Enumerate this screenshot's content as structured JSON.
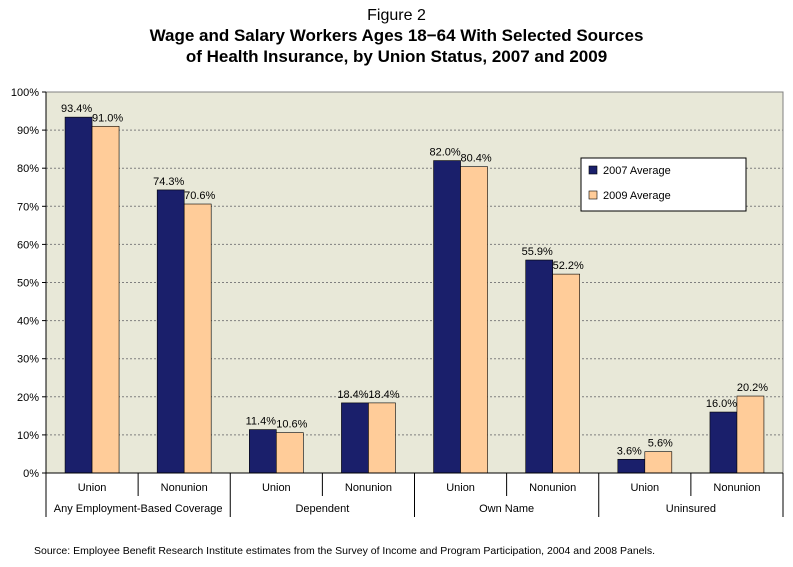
{
  "header": {
    "figure_label": "Figure 2",
    "title_line1": "Wage and Salary Workers Ages 18−64 With Selected Sources",
    "title_line2": "of Health Insurance, by Union Status, 2007 and 2009"
  },
  "source_note": "Source: Employee Benefit Research Institute estimates from the Survey of Income and Program Participation,  2004 and 2008 Panels.",
  "colors": {
    "series_2007": "#1a1f6b",
    "series_2009": "#ffcc99",
    "plot_background": "#e8e8d8",
    "grid": "#7f7f7f"
  },
  "chart_data": {
    "type": "bar",
    "title": "Wage and Salary Workers Ages 18−64 With Selected Sources of Health Insurance, by Union Status, 2007 and 2009",
    "categories": [
      "Union",
      "Nonunion",
      "Union",
      "Nonunion",
      "Union",
      "Nonunion",
      "Union",
      "Nonunion"
    ],
    "groups": [
      {
        "label": "Any Employment-Based Coverage",
        "categories": [
          "Union",
          "Nonunion"
        ]
      },
      {
        "label": "Dependent",
        "categories": [
          "Union",
          "Nonunion"
        ]
      },
      {
        "label": "Own Name",
        "categories": [
          "Union",
          "Nonunion"
        ]
      },
      {
        "label": "Uninsured",
        "categories": [
          "Union",
          "Nonunion"
        ]
      }
    ],
    "series": [
      {
        "name": "2007 Average",
        "color": "#1a1f6b",
        "values": [
          93.4,
          74.3,
          11.4,
          18.4,
          82.0,
          55.9,
          3.6,
          16.0
        ]
      },
      {
        "name": "2009 Average",
        "color": "#ffcc99",
        "values": [
          91.0,
          70.6,
          10.6,
          18.4,
          80.4,
          52.2,
          5.6,
          20.2
        ]
      }
    ],
    "ylim": [
      0,
      100
    ],
    "yticks": [
      0,
      10,
      20,
      30,
      40,
      50,
      60,
      70,
      80,
      90,
      100
    ],
    "ytick_labels": [
      "0%",
      "10%",
      "20%",
      "30%",
      "40%",
      "50%",
      "60%",
      "70%",
      "80%",
      "90%",
      "100%"
    ],
    "value_labels": [
      [
        "93.4%",
        "74.3%",
        "11.4%",
        "18.4%",
        "82.0%",
        "55.9%",
        "3.6%",
        "16.0%"
      ],
      [
        "91.0%",
        "70.6%",
        "10.6%",
        "18.4%",
        "80.4%",
        "52.2%",
        "5.6%",
        "20.2%"
      ]
    ],
    "legend_position": "upper-right",
    "grid": true,
    "xlabel": "",
    "ylabel": ""
  }
}
